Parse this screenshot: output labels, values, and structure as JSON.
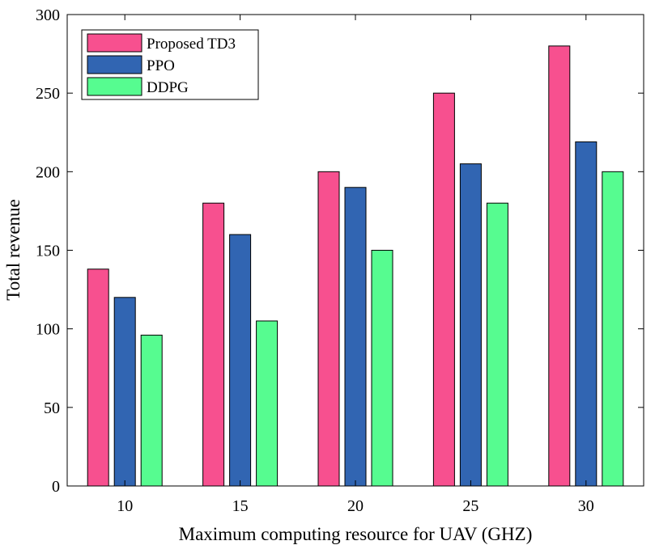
{
  "chart_data": {
    "type": "bar",
    "title": "",
    "xlabel": "Maximum computing resource for UAV (GHZ)",
    "ylabel": "Total revenue",
    "categories": [
      "10",
      "15",
      "20",
      "25",
      "30"
    ],
    "ylim": [
      0,
      300
    ],
    "yticks": [
      0,
      50,
      100,
      150,
      200,
      250,
      300
    ],
    "grid": false,
    "legend_position": "top-left",
    "series": [
      {
        "name": "Proposed TD3",
        "color": "#f7508f",
        "values": [
          138,
          180,
          200,
          250,
          280
        ]
      },
      {
        "name": "PPO",
        "color": "#3165b2",
        "values": [
          120,
          160,
          190,
          205,
          219
        ]
      },
      {
        "name": "DDPG",
        "color": "#56fc90",
        "values": [
          96,
          105,
          150,
          180,
          200
        ]
      }
    ]
  }
}
